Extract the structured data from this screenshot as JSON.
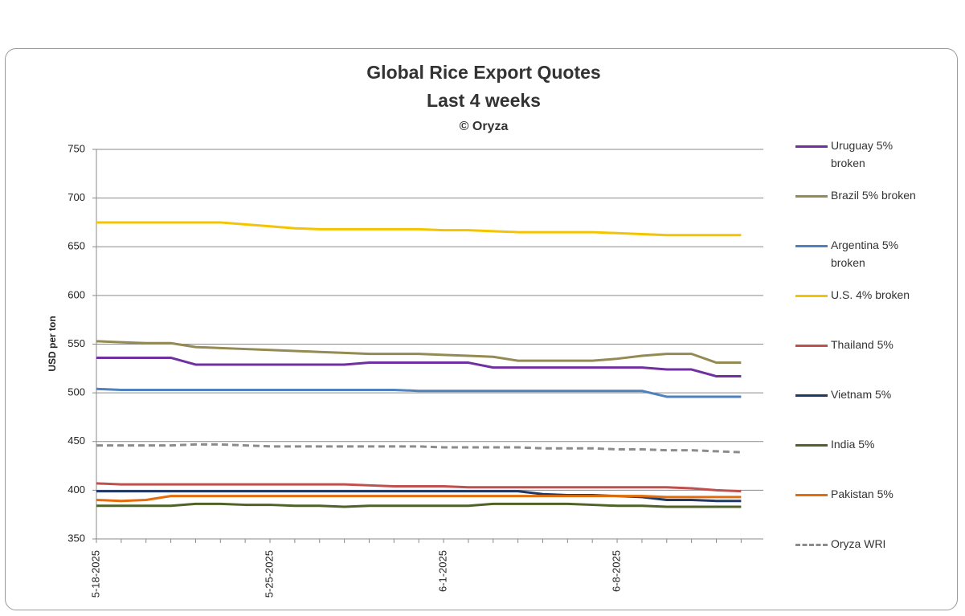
{
  "chart_data": {
    "type": "line",
    "title": "Global Rice Export Quotes",
    "subtitle": "Last 4 weeks",
    "credit": "© Oryza",
    "y_label": "USD per ton",
    "categories": [
      "5-18-2025",
      null,
      null,
      null,
      null,
      null,
      null,
      "5-25-2025",
      null,
      null,
      null,
      null,
      null,
      null,
      "6-1-2025",
      null,
      null,
      null,
      null,
      null,
      null,
      "6-8-2025",
      null,
      null,
      null,
      null,
      null
    ],
    "ylim": [
      350,
      750
    ],
    "yticks": [
      350,
      400,
      450,
      500,
      550,
      600,
      650,
      700,
      750
    ],
    "grid": true,
    "series": [
      {
        "name": "Uruguay 5% broken",
        "color": "#7030a0",
        "values": [
          536,
          536,
          536,
          536,
          529,
          529,
          529,
          529,
          529,
          529,
          529,
          531,
          531,
          531,
          531,
          531,
          526,
          526,
          526,
          526,
          526,
          526,
          526,
          524,
          524,
          517,
          517
        ]
      },
      {
        "name": "Brazil 5% broken",
        "color": "#948a54",
        "values": [
          553,
          552,
          551,
          551,
          547,
          546,
          545,
          544,
          543,
          542,
          541,
          540,
          540,
          540,
          539,
          538,
          537,
          533,
          533,
          533,
          533,
          535,
          538,
          540,
          540,
          531,
          531
        ]
      },
      {
        "name": "Argentina 5% broken",
        "color": "#4f81bd",
        "values": [
          504,
          503,
          503,
          503,
          503,
          503,
          503,
          503,
          503,
          503,
          503,
          503,
          503,
          502,
          502,
          502,
          502,
          502,
          502,
          502,
          502,
          502,
          502,
          496,
          496,
          496,
          496
        ]
      },
      {
        "name": "U.S. 4% broken",
        "color": "#f5c400",
        "values": [
          675,
          675,
          675,
          675,
          675,
          675,
          673,
          671,
          669,
          668,
          668,
          668,
          668,
          668,
          667,
          667,
          666,
          665,
          665,
          665,
          665,
          664,
          663,
          662,
          662,
          662,
          662
        ]
      },
      {
        "name": "Thailand 5%",
        "color": "#c0504d",
        "values": [
          407,
          406,
          406,
          406,
          406,
          406,
          406,
          406,
          406,
          406,
          406,
          405,
          404,
          404,
          404,
          403,
          403,
          403,
          403,
          403,
          403,
          403,
          403,
          403,
          402,
          400,
          399
        ]
      },
      {
        "name": "Vietnam 5%",
        "color": "#1f3864",
        "values": [
          399,
          399,
          399,
          399,
          399,
          399,
          399,
          399,
          399,
          399,
          399,
          399,
          399,
          399,
          399,
          399,
          399,
          399,
          396,
          395,
          395,
          394,
          393,
          390,
          390,
          389,
          389
        ]
      },
      {
        "name": "India 5%",
        "color": "#4f6228",
        "values": [
          384,
          384,
          384,
          384,
          386,
          386,
          385,
          385,
          384,
          384,
          383,
          384,
          384,
          384,
          384,
          384,
          386,
          386,
          386,
          386,
          385,
          384,
          384,
          383,
          383,
          383,
          383
        ]
      },
      {
        "name": "Pakistan 5%",
        "color": "#e46c0a",
        "values": [
          390,
          389,
          390,
          394,
          394,
          394,
          394,
          394,
          394,
          394,
          394,
          394,
          394,
          394,
          394,
          394,
          394,
          394,
          394,
          394,
          394,
          394,
          394,
          393,
          393,
          393,
          393
        ]
      },
      {
        "name": "Oryza WRI",
        "color": "#8c8c8c",
        "dash": true,
        "values": [
          446,
          446,
          446,
          446,
          447,
          447,
          446,
          445,
          445,
          445,
          445,
          445,
          445,
          445,
          444,
          444,
          444,
          444,
          443,
          443,
          443,
          442,
          442,
          441,
          441,
          440,
          439
        ]
      }
    ]
  }
}
